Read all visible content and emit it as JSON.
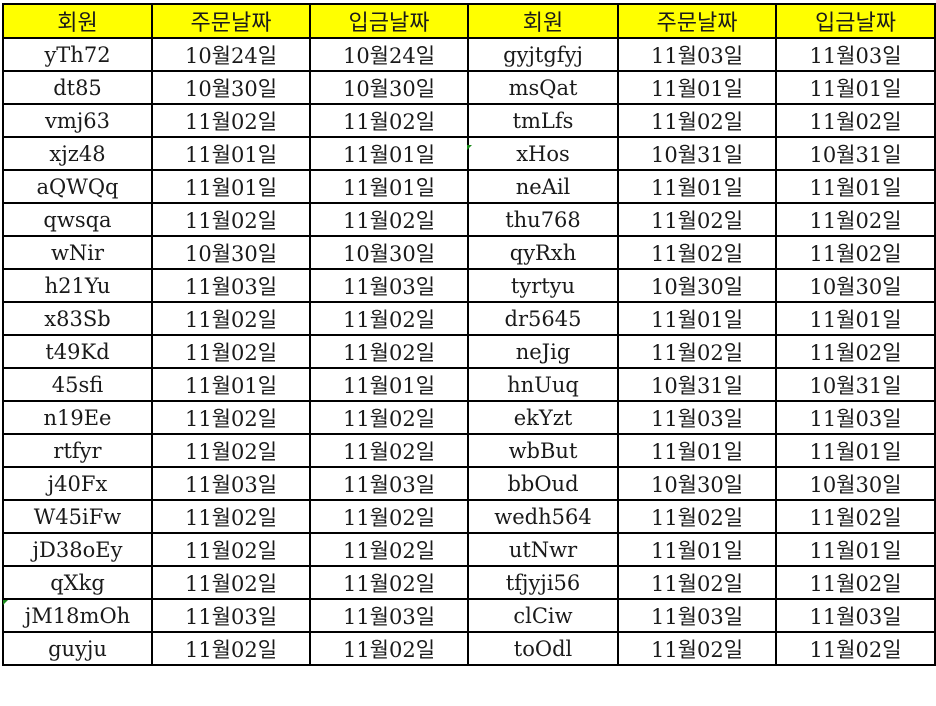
{
  "headers": [
    "회원",
    "주문날짜",
    "입금날짜",
    "회원",
    "주문날짜",
    "입금날짜"
  ],
  "header_color": "#ffff00",
  "rows": [
    [
      "yTh72",
      "10월24일",
      "10월24일",
      "gyjtgfyj",
      "11월03일",
      "11월03일"
    ],
    [
      "dt85",
      "10월30일",
      "10월30일",
      "msQat",
      "11월01일",
      "11월01일"
    ],
    [
      "vmj63",
      "11월02일",
      "11월02일",
      "tmLfs",
      "11월02일",
      "11월02일"
    ],
    [
      "xjz48",
      "11월01일",
      "11월01일",
      "xHos",
      "10월31일",
      "10월31일"
    ],
    [
      "aQWQq",
      "11월01일",
      "11월01일",
      "neAil",
      "11월01일",
      "11월01일"
    ],
    [
      "qwsqa",
      "11월02일",
      "11월02일",
      "thu768",
      "11월02일",
      "11월02일"
    ],
    [
      "wNir",
      "10월30일",
      "10월30일",
      "qyRxh",
      "11월02일",
      "11월02일"
    ],
    [
      "h21Yu",
      "11월03일",
      "11월03일",
      "tyrtyu",
      "10월30일",
      "10월30일"
    ],
    [
      "x83Sb",
      "11월02일",
      "11월02일",
      "dr5645",
      "11월01일",
      "11월01일"
    ],
    [
      "t49Kd",
      "11월02일",
      "11월02일",
      "neJig",
      "11월02일",
      "11월02일"
    ],
    [
      "45sfi",
      "11월01일",
      "11월01일",
      "hnUuq",
      "10월31일",
      "10월31일"
    ],
    [
      "n19Ee",
      "11월02일",
      "11월02일",
      "ekYzt",
      "11월03일",
      "11월03일"
    ],
    [
      "rtfyr",
      "11월02일",
      "11월02일",
      "wbBut",
      "11월01일",
      "11월01일"
    ],
    [
      "j40Fx",
      "11월03일",
      "11월03일",
      "bbOud",
      "10월30일",
      "10월30일"
    ],
    [
      "W45iFw",
      "11월02일",
      "11월02일",
      "wedh564",
      "11월02일",
      "11월02일"
    ],
    [
      "jD38oEy",
      "11월02일",
      "11월02일",
      "utNwr",
      "11월01일",
      "11월01일"
    ],
    [
      "qXkg",
      "11월02일",
      "11월02일",
      "tfjyji56",
      "11월02일",
      "11월02일"
    ],
    [
      "jM18mOh",
      "11월03일",
      "11월03일",
      "clCiw",
      "11월03일",
      "11월03일"
    ],
    [
      "guyju",
      "11월02일",
      "11월02일",
      "toOdl",
      "11월02일",
      "11월02일"
    ]
  ]
}
